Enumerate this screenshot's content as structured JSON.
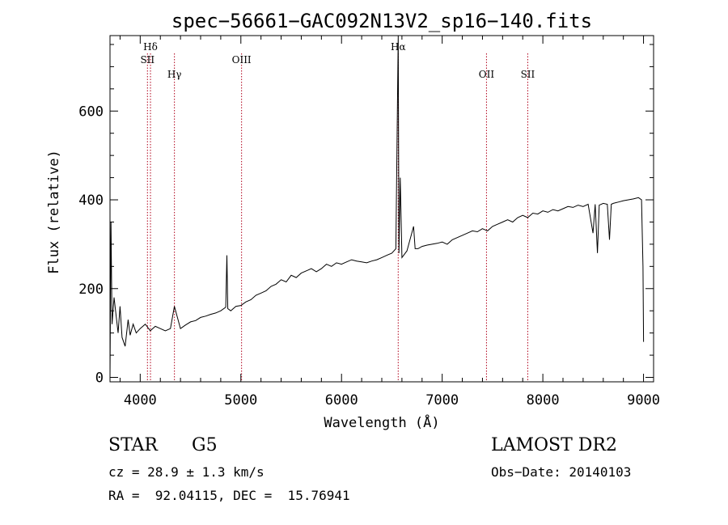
{
  "chart_data": {
    "type": "line",
    "title": "spec−56661−GAC092N13V2_sp16−140.fits",
    "xlabel": "Wavelength (Å)",
    "ylabel": "Flux (relative)",
    "xlim": [
      3700,
      9100
    ],
    "ylim": [
      -10,
      770
    ],
    "xticks": [
      4000,
      5000,
      6000,
      7000,
      8000,
      9000
    ],
    "yticks": [
      0,
      200,
      400,
      600
    ],
    "grid": false,
    "legend": "none",
    "series": [
      {
        "x": [
          3700,
          3710,
          3720,
          3740,
          3760,
          3780,
          3800,
          3820,
          3850,
          3880,
          3900,
          3930,
          3960,
          4000,
          4050,
          4100,
          4150,
          4200,
          4250,
          4300,
          4340,
          4400,
          4450,
          4500,
          4550,
          4600,
          4650,
          4700,
          4750,
          4800,
          4850,
          4861,
          4870,
          4900,
          4950,
          5000,
          5050,
          5100,
          5150,
          5200,
          5250,
          5300,
          5350,
          5400,
          5450,
          5500,
          5550,
          5600,
          5650,
          5700,
          5750,
          5800,
          5850,
          5900,
          5950,
          6000,
          6050,
          6100,
          6150,
          6200,
          6250,
          6300,
          6350,
          6400,
          6450,
          6500,
          6540,
          6563,
          6570,
          6583,
          6600,
          6650,
          6716,
          6731,
          6760,
          6800,
          6850,
          6900,
          6950,
          7000,
          7050,
          7100,
          7150,
          7200,
          7250,
          7300,
          7350,
          7400,
          7450,
          7500,
          7550,
          7600,
          7650,
          7700,
          7750,
          7800,
          7850,
          7900,
          7950,
          8000,
          8050,
          8100,
          8150,
          8200,
          8250,
          8300,
          8350,
          8400,
          8450,
          8498,
          8520,
          8542,
          8560,
          8600,
          8640,
          8662,
          8680,
          8700,
          8750,
          8800,
          8850,
          8900,
          8950,
          8980,
          8995,
          9000
        ],
        "values": [
          0,
          350,
          120,
          180,
          140,
          100,
          160,
          90,
          70,
          130,
          95,
          120,
          100,
          110,
          120,
          105,
          115,
          110,
          105,
          110,
          160,
          110,
          118,
          125,
          128,
          135,
          138,
          142,
          145,
          150,
          158,
          275,
          155,
          150,
          160,
          162,
          170,
          175,
          185,
          190,
          195,
          205,
          210,
          220,
          215,
          230,
          225,
          235,
          240,
          245,
          238,
          245,
          255,
          250,
          258,
          255,
          260,
          265,
          262,
          260,
          258,
          262,
          265,
          270,
          275,
          280,
          290,
          770,
          280,
          450,
          270,
          285,
          340,
          290,
          290,
          295,
          298,
          300,
          302,
          305,
          300,
          310,
          315,
          320,
          325,
          330,
          328,
          335,
          330,
          340,
          345,
          350,
          355,
          350,
          360,
          365,
          360,
          370,
          368,
          375,
          372,
          378,
          375,
          380,
          385,
          383,
          388,
          385,
          390,
          325,
          390,
          280,
          388,
          392,
          390,
          310,
          390,
          392,
          395,
          398,
          400,
          402,
          405,
          400,
          250,
          80
        ]
      }
    ],
    "lines": [
      {
        "x": 4072,
        "labels": [
          "SII"
        ]
      },
      {
        "x": 4102,
        "labels": [
          "Hδ"
        ]
      },
      {
        "x": 4340,
        "labels": [
          "Hγ"
        ]
      },
      {
        "x": 5007,
        "labels": [
          "OIII"
        ]
      },
      {
        "x": 6563,
        "labels": [
          "Hα"
        ]
      },
      {
        "x": 7440,
        "labels": [
          "OII"
        ]
      },
      {
        "x": 7850,
        "labels": [
          "SII"
        ]
      }
    ]
  },
  "info": {
    "class": "STAR",
    "subclass": "G5",
    "survey": "LAMOST DR2",
    "cz": "cz = 28.9 ± 1.3 km/s",
    "obs_date": "Obs−Date: 20140103",
    "coords": "RA =  92.04115, DEC =  15.76941"
  }
}
